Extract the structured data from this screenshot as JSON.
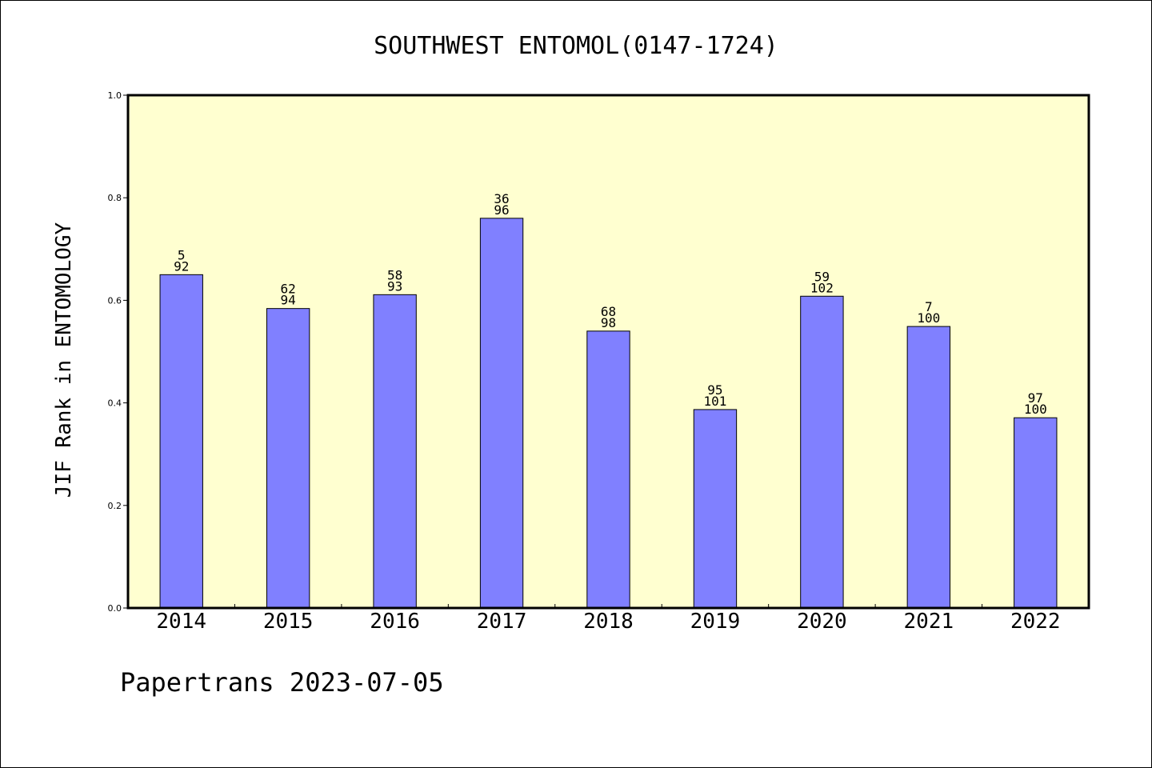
{
  "chart_data": {
    "type": "bar",
    "title": "SOUTHWEST ENTOMOL(0147-1724)",
    "ylabel": "JIF Rank in ENTOMOLOGY",
    "xlabel": "",
    "ylim": [
      0,
      1.0
    ],
    "yticks": [
      "0.0",
      "0.2",
      "0.4",
      "0.6",
      "0.8",
      "1.0"
    ],
    "categories": [
      "2014",
      "2015",
      "2016",
      "2017",
      "2018",
      "2019",
      "2020",
      "2021",
      "2022"
    ],
    "values": [
      0.65,
      0.584,
      0.611,
      0.76,
      0.54,
      0.387,
      0.608,
      0.549,
      0.371
    ],
    "label_top": [
      "5",
      "62",
      "58",
      "36",
      "68",
      "95",
      "59",
      "7",
      "97"
    ],
    "label_bottom": [
      "92",
      "94",
      "93",
      "96",
      "98",
      "101",
      "102",
      "100",
      "100"
    ],
    "grid": false,
    "colors": {
      "bar": "#8080ff",
      "plot_background": "#ffffd0",
      "axis": "#000000"
    }
  },
  "footer": "Papertrans 2023-07-05"
}
